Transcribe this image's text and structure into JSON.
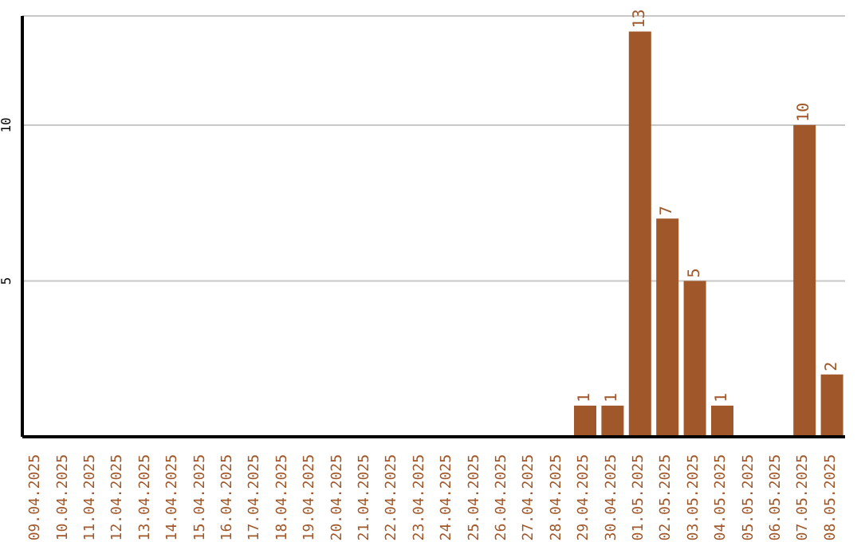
{
  "chart_data": {
    "type": "bar",
    "categories": [
      "09.04.2025",
      "10.04.2025",
      "11.04.2025",
      "12.04.2025",
      "13.04.2025",
      "14.04.2025",
      "15.04.2025",
      "16.04.2025",
      "17.04.2025",
      "18.04.2025",
      "19.04.2025",
      "20.04.2025",
      "21.04.2025",
      "22.04.2025",
      "23.04.2025",
      "24.04.2025",
      "25.04.2025",
      "26.04.2025",
      "27.04.2025",
      "28.04.2025",
      "29.04.2025",
      "30.04.2025",
      "01.05.2025",
      "02.05.2025",
      "03.05.2025",
      "04.05.2025",
      "05.05.2025",
      "06.05.2025",
      "07.05.2025",
      "08.05.2025"
    ],
    "values": [
      0,
      0,
      0,
      0,
      0,
      0,
      0,
      0,
      0,
      0,
      0,
      0,
      0,
      0,
      0,
      0,
      0,
      0,
      0,
      0,
      1,
      1,
      13,
      7,
      5,
      1,
      0,
      0,
      10,
      2
    ],
    "value_labels": [
      null,
      null,
      null,
      null,
      null,
      null,
      null,
      null,
      null,
      null,
      null,
      null,
      null,
      null,
      null,
      null,
      null,
      null,
      null,
      null,
      "1",
      "1",
      "13",
      "7",
      "5",
      "1",
      null,
      null,
      "10",
      "2"
    ],
    "color": "#a0582a",
    "ylim": [
      0,
      13.5
    ],
    "yticks": [
      5,
      10
    ],
    "grid": "y"
  }
}
